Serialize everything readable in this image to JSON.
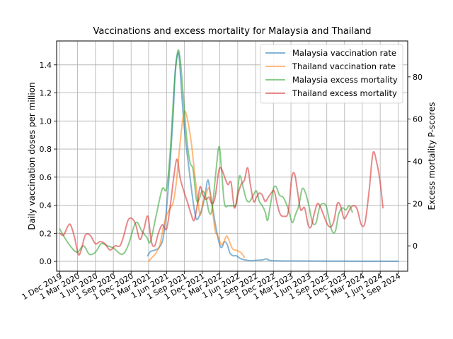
{
  "chart_data": {
    "type": "line",
    "title": "Vaccinations and excess mortality for Malaysia and Thailand",
    "ylabel_left": "Daily vaccination doses per million",
    "ylabel_right": "Excess mortality P-scores",
    "ylim_left": [
      -0.07,
      1.57
    ],
    "ylim_right": [
      -12,
      97
    ],
    "yticks_left": [
      "0.0",
      "0.2",
      "0.4",
      "0.6",
      "0.8",
      "1.0",
      "1.2",
      "1.4"
    ],
    "yticks_right": [
      "0",
      "20",
      "40",
      "60",
      "80"
    ],
    "xlim": [
      "2019-11-15",
      "2024-10-20"
    ],
    "xticks": [
      {
        "date": "2019-12-01",
        "label": "1 Dec 2019"
      },
      {
        "date": "2020-03-01",
        "label": "1 Mar 2020"
      },
      {
        "date": "2020-06-01",
        "label": "1 Jun 2020"
      },
      {
        "date": "2020-09-01",
        "label": "1 Sep 2020"
      },
      {
        "date": "2020-12-01",
        "label": "1 Dec 2020"
      },
      {
        "date": "2021-03-01",
        "label": "1 Mar 2021"
      },
      {
        "date": "2021-06-01",
        "label": "1 Jun 2021"
      },
      {
        "date": "2021-09-01",
        "label": "1 Sep 2021"
      },
      {
        "date": "2021-12-01",
        "label": "1 Dec 2021"
      },
      {
        "date": "2022-03-01",
        "label": "1 Mar 2022"
      },
      {
        "date": "2022-06-01",
        "label": "1 Jun 2022"
      },
      {
        "date": "2022-09-01",
        "label": "1 Sep 2022"
      },
      {
        "date": "2022-12-01",
        "label": "1 Dec 2022"
      },
      {
        "date": "2023-03-01",
        "label": "1 Mar 2023"
      },
      {
        "date": "2023-06-01",
        "label": "1 Jun 2023"
      },
      {
        "date": "2023-09-01",
        "label": "1 Sep 2023"
      },
      {
        "date": "2023-12-01",
        "label": "1 Dec 2023"
      },
      {
        "date": "2024-03-01",
        "label": "1 Mar 2024"
      },
      {
        "date": "2024-06-01",
        "label": "1 Jun 2024"
      },
      {
        "date": "2024-09-01",
        "label": "1 Sep 2024"
      }
    ],
    "grid": true,
    "legend_position": "top-right",
    "series": [
      {
        "name": "Malaysia vaccination rate",
        "axis": "left",
        "color": "#1f77b4",
        "points": [
          [
            "2021-02-24",
            0.04
          ],
          [
            "2021-03-10",
            0.07
          ],
          [
            "2021-04-01",
            0.08
          ],
          [
            "2021-04-25",
            0.1
          ],
          [
            "2021-05-15",
            0.17
          ],
          [
            "2021-06-01",
            0.38
          ],
          [
            "2021-06-20",
            0.72
          ],
          [
            "2021-07-05",
            1.05
          ],
          [
            "2021-07-15",
            1.35
          ],
          [
            "2021-07-28",
            1.48
          ],
          [
            "2021-08-05",
            1.45
          ],
          [
            "2021-08-15",
            1.25
          ],
          [
            "2021-08-28",
            1.0
          ],
          [
            "2021-09-10",
            0.82
          ],
          [
            "2021-09-25",
            0.65
          ],
          [
            "2021-10-08",
            0.5
          ],
          [
            "2021-10-20",
            0.38
          ],
          [
            "2021-11-01",
            0.3
          ],
          [
            "2021-11-15",
            0.32
          ],
          [
            "2021-12-01",
            0.38
          ],
          [
            "2021-12-15",
            0.47
          ],
          [
            "2021-12-30",
            0.58
          ],
          [
            "2022-01-12",
            0.48
          ],
          [
            "2022-01-28",
            0.34
          ],
          [
            "2022-02-12",
            0.22
          ],
          [
            "2022-02-28",
            0.12
          ],
          [
            "2022-03-12",
            0.1
          ],
          [
            "2022-03-25",
            0.14
          ],
          [
            "2022-04-08",
            0.12
          ],
          [
            "2022-04-22",
            0.06
          ],
          [
            "2022-05-08",
            0.04
          ],
          [
            "2022-05-25",
            0.04
          ],
          [
            "2022-06-15",
            0.02
          ],
          [
            "2022-07-10",
            0.01
          ],
          [
            "2022-08-10",
            0.005
          ],
          [
            "2022-09-10",
            0.008
          ],
          [
            "2022-10-05",
            0.01
          ],
          [
            "2022-10-25",
            0.018
          ],
          [
            "2022-11-10",
            0.008
          ],
          [
            "2022-12-15",
            0.004
          ],
          [
            "2023-03-01",
            0.003
          ],
          [
            "2023-09-01",
            0.002
          ],
          [
            "2024-03-01",
            0.001
          ],
          [
            "2024-09-01",
            0.001
          ]
        ]
      },
      {
        "name": "Thailand vaccination rate",
        "axis": "left",
        "color": "#ff7f0e",
        "points": [
          [
            "2021-03-01",
            0.0
          ],
          [
            "2021-03-20",
            0.03
          ],
          [
            "2021-04-08",
            0.06
          ],
          [
            "2021-04-28",
            0.12
          ],
          [
            "2021-05-15",
            0.24
          ],
          [
            "2021-06-01",
            0.33
          ],
          [
            "2021-06-20",
            0.38
          ],
          [
            "2021-07-05",
            0.42
          ],
          [
            "2021-07-20",
            0.55
          ],
          [
            "2021-08-05",
            0.78
          ],
          [
            "2021-08-20",
            0.98
          ],
          [
            "2021-09-01",
            1.07
          ],
          [
            "2021-09-15",
            1.02
          ],
          [
            "2021-09-28",
            0.92
          ],
          [
            "2021-10-10",
            0.8
          ],
          [
            "2021-10-25",
            0.6
          ],
          [
            "2021-11-08",
            0.45
          ],
          [
            "2021-11-20",
            0.33
          ],
          [
            "2021-12-05",
            0.42
          ],
          [
            "2021-12-20",
            0.48
          ],
          [
            "2022-01-05",
            0.52
          ],
          [
            "2022-01-20",
            0.4
          ],
          [
            "2022-02-05",
            0.22
          ],
          [
            "2022-02-20",
            0.18
          ],
          [
            "2022-03-08",
            0.12
          ],
          [
            "2022-03-22",
            0.14
          ],
          [
            "2022-04-05",
            0.18
          ],
          [
            "2022-04-20",
            0.14
          ],
          [
            "2022-05-05",
            0.09
          ],
          [
            "2022-05-22",
            0.08
          ],
          [
            "2022-06-10",
            0.07
          ],
          [
            "2022-06-25",
            0.05
          ],
          [
            "2022-07-05",
            0.03
          ]
        ]
      },
      {
        "name": "Malaysia excess mortality",
        "axis": "right",
        "color": "#2ca02c",
        "points": [
          [
            "2019-12-01",
            8
          ],
          [
            "2020-01-01",
            3
          ],
          [
            "2020-02-01",
            -1
          ],
          [
            "2020-03-01",
            -3
          ],
          [
            "2020-04-01",
            0
          ],
          [
            "2020-05-01",
            -4
          ],
          [
            "2020-06-01",
            -3
          ],
          [
            "2020-07-01",
            1
          ],
          [
            "2020-08-01",
            0
          ],
          [
            "2020-09-01",
            -1
          ],
          [
            "2020-10-15",
            -4
          ],
          [
            "2020-11-15",
            0
          ],
          [
            "2020-12-25",
            11
          ],
          [
            "2021-01-25",
            7
          ],
          [
            "2021-02-20",
            4
          ],
          [
            "2021-03-10",
            2
          ],
          [
            "2021-04-10",
            15
          ],
          [
            "2021-05-10",
            27
          ],
          [
            "2021-06-01",
            27
          ],
          [
            "2021-06-20",
            45
          ],
          [
            "2021-07-10",
            75
          ],
          [
            "2021-07-28",
            92
          ],
          [
            "2021-08-10",
            88
          ],
          [
            "2021-08-25",
            72
          ],
          [
            "2021-09-10",
            53
          ],
          [
            "2021-09-28",
            40
          ],
          [
            "2021-10-15",
            36
          ],
          [
            "2021-11-01",
            22
          ],
          [
            "2021-11-15",
            22
          ],
          [
            "2021-12-01",
            26
          ],
          [
            "2021-12-20",
            23
          ],
          [
            "2022-01-05",
            16
          ],
          [
            "2022-01-20",
            17
          ],
          [
            "2022-02-08",
            34
          ],
          [
            "2022-02-25",
            47
          ],
          [
            "2022-03-10",
            36
          ],
          [
            "2022-03-25",
            20
          ],
          [
            "2022-04-15",
            19
          ],
          [
            "2022-05-05",
            19
          ],
          [
            "2022-05-25",
            20
          ],
          [
            "2022-06-10",
            33
          ],
          [
            "2022-06-28",
            28
          ],
          [
            "2022-07-15",
            22
          ],
          [
            "2022-08-01",
            21
          ],
          [
            "2022-08-20",
            24
          ],
          [
            "2022-09-05",
            26
          ],
          [
            "2022-09-20",
            21
          ],
          [
            "2022-10-05",
            19
          ],
          [
            "2022-10-20",
            16
          ],
          [
            "2022-11-01",
            12
          ],
          [
            "2022-11-15",
            19
          ],
          [
            "2022-12-01",
            27
          ],
          [
            "2022-12-15",
            28
          ],
          [
            "2023-01-01",
            24
          ],
          [
            "2023-01-20",
            23
          ],
          [
            "2023-02-05",
            20
          ],
          [
            "2023-02-20",
            16
          ],
          [
            "2023-03-08",
            11
          ],
          [
            "2023-03-25",
            15
          ],
          [
            "2023-04-10",
            19
          ],
          [
            "2023-04-28",
            27
          ],
          [
            "2023-05-15",
            25
          ],
          [
            "2023-06-01",
            19
          ],
          [
            "2023-06-20",
            11
          ],
          [
            "2023-07-08",
            11
          ],
          [
            "2023-07-25",
            18
          ],
          [
            "2023-08-10",
            20
          ],
          [
            "2023-08-28",
            19
          ],
          [
            "2023-09-12",
            13
          ],
          [
            "2023-09-28",
            7
          ],
          [
            "2023-10-15",
            7
          ],
          [
            "2023-11-01",
            15
          ],
          [
            "2023-11-20",
            18
          ],
          [
            "2023-12-08",
            17
          ],
          [
            "2023-12-25",
            19
          ],
          [
            "2024-01-10",
            16
          ]
        ]
      },
      {
        "name": "Thailand excess mortality",
        "axis": "right",
        "color": "#d62728",
        "points": [
          [
            "2019-12-01",
            6
          ],
          [
            "2019-12-20",
            5
          ],
          [
            "2020-01-10",
            9
          ],
          [
            "2020-01-25",
            10
          ],
          [
            "2020-02-15",
            4
          ],
          [
            "2020-03-05",
            -4
          ],
          [
            "2020-03-20",
            -2
          ],
          [
            "2020-04-10",
            5
          ],
          [
            "2020-05-05",
            5
          ],
          [
            "2020-06-01",
            1
          ],
          [
            "2020-06-25",
            2
          ],
          [
            "2020-07-20",
            1
          ],
          [
            "2020-08-15",
            -2
          ],
          [
            "2020-09-10",
            0
          ],
          [
            "2020-10-05",
            0
          ],
          [
            "2020-10-25",
            5
          ],
          [
            "2020-11-15",
            12
          ],
          [
            "2020-12-05",
            13
          ],
          [
            "2020-12-25",
            10
          ],
          [
            "2021-01-15",
            3
          ],
          [
            "2021-02-05",
            8
          ],
          [
            "2021-02-25",
            14
          ],
          [
            "2021-03-15",
            2
          ],
          [
            "2021-04-01",
            0
          ],
          [
            "2021-04-20",
            6
          ],
          [
            "2021-05-10",
            10
          ],
          [
            "2021-06-01",
            8
          ],
          [
            "2021-06-20",
            19
          ],
          [
            "2021-07-10",
            34
          ],
          [
            "2021-07-25",
            41
          ],
          [
            "2021-08-10",
            32
          ],
          [
            "2021-08-28",
            26
          ],
          [
            "2021-09-15",
            21
          ],
          [
            "2021-10-05",
            15
          ],
          [
            "2021-10-20",
            12
          ],
          [
            "2021-11-05",
            19
          ],
          [
            "2021-11-20",
            28
          ],
          [
            "2021-12-05",
            24
          ],
          [
            "2021-12-20",
            22
          ],
          [
            "2022-01-05",
            23
          ],
          [
            "2022-01-20",
            20
          ],
          [
            "2022-02-05",
            23
          ],
          [
            "2022-02-25",
            36
          ],
          [
            "2022-03-12",
            36
          ],
          [
            "2022-03-28",
            32
          ],
          [
            "2022-04-12",
            29
          ],
          [
            "2022-04-28",
            30
          ],
          [
            "2022-05-15",
            18
          ],
          [
            "2022-06-01",
            24
          ],
          [
            "2022-06-18",
            29
          ],
          [
            "2022-07-05",
            31
          ],
          [
            "2022-07-22",
            37
          ],
          [
            "2022-08-05",
            29
          ],
          [
            "2022-08-22",
            21
          ],
          [
            "2022-09-05",
            23
          ],
          [
            "2022-09-20",
            25
          ],
          [
            "2022-10-05",
            24
          ],
          [
            "2022-10-20",
            21
          ],
          [
            "2022-11-05",
            23
          ],
          [
            "2022-11-20",
            25
          ],
          [
            "2022-12-05",
            26
          ],
          [
            "2022-12-20",
            20
          ],
          [
            "2023-01-05",
            15
          ],
          [
            "2023-01-25",
            14
          ],
          [
            "2023-02-15",
            16
          ],
          [
            "2023-03-05",
            32
          ],
          [
            "2023-03-20",
            34
          ],
          [
            "2023-04-05",
            25
          ],
          [
            "2023-04-20",
            17
          ],
          [
            "2023-05-10",
            18
          ],
          [
            "2023-05-28",
            10
          ],
          [
            "2023-06-12",
            9
          ],
          [
            "2023-06-28",
            15
          ],
          [
            "2023-07-15",
            20
          ],
          [
            "2023-08-01",
            18
          ],
          [
            "2023-08-18",
            14
          ],
          [
            "2023-09-05",
            10
          ],
          [
            "2023-09-22",
            9
          ],
          [
            "2023-10-08",
            12
          ],
          [
            "2023-10-25",
            20
          ],
          [
            "2023-11-10",
            19
          ],
          [
            "2023-11-28",
            13
          ],
          [
            "2023-12-15",
            15
          ],
          [
            "2024-01-01",
            18
          ],
          [
            "2024-01-20",
            19
          ],
          [
            "2024-02-05",
            17
          ],
          [
            "2024-02-25",
            10
          ],
          [
            "2024-03-15",
            11
          ],
          [
            "2024-04-05",
            26
          ],
          [
            "2024-04-25",
            44
          ],
          [
            "2024-05-15",
            39
          ],
          [
            "2024-06-01",
            30
          ],
          [
            "2024-06-15",
            18
          ]
        ]
      }
    ]
  }
}
